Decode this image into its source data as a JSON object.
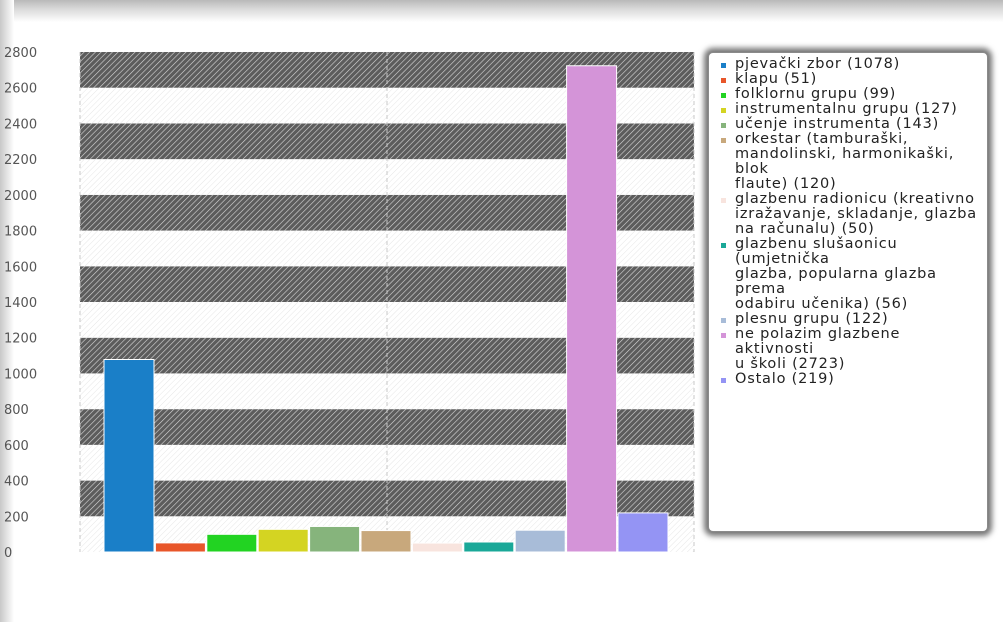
{
  "chart_data": {
    "type": "bar",
    "ylim": [
      0,
      2800
    ],
    "yticks": [
      0,
      200,
      400,
      600,
      800,
      1000,
      1200,
      1400,
      1600,
      1800,
      2000,
      2200,
      2400,
      2600,
      2800
    ],
    "grid": "alternating hatched horizontal bands",
    "legend_position": "right",
    "series": [
      {
        "name": "pjevački zbor (1078)",
        "value": 1078,
        "color": "#1a7fc8"
      },
      {
        "name": "klapu (51)",
        "value": 51,
        "color": "#e8562a"
      },
      {
        "name": "folklornu grupu (99)",
        "value": 99,
        "color": "#22d322"
      },
      {
        "name": "instrumentalnu grupu (127)",
        "value": 127,
        "color": "#d4d422"
      },
      {
        "name": "učenje instrumenta (143)",
        "value": 143,
        "color": "#86b47c"
      },
      {
        "name": "orkestar (tamburaški, mandolinski, harmonikaški, blok flaute) (120)",
        "value": 120,
        "color": "#c8a87c"
      },
      {
        "name": "glazbenu radionicu (kreativno izražavanje, skladanje, glazba na računalu) (50)",
        "value": 50,
        "color": "#f8e4de"
      },
      {
        "name": "glazbenu slušaonicu (umjetnička glazba, popularna glazba prema odabiru učenika) (56)",
        "value": 56,
        "color": "#1aa898"
      },
      {
        "name": "plesnu grupu (122)",
        "value": 122,
        "color": "#a8bcd8"
      },
      {
        "name": "ne polazim glazbene aktivnosti u školi (2723)",
        "value": 2723,
        "color": "#d494d8"
      },
      {
        "name": "Ostalo (219)",
        "value": 219,
        "color": "#9494f4"
      }
    ]
  }
}
